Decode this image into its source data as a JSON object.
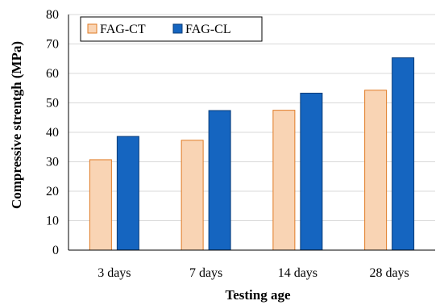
{
  "chart_data": {
    "type": "bar",
    "title": "",
    "xlabel": "Testing age",
    "ylabel": "Compressive strentgh  (MPa)",
    "categories": [
      "3 days",
      "7 days",
      "14 days",
      "28 days"
    ],
    "ylim": [
      0,
      80
    ],
    "yticks": [
      0,
      10,
      20,
      30,
      40,
      50,
      60,
      70,
      80
    ],
    "grid": true,
    "legend_position": "top-left",
    "series": [
      {
        "name": "FAG-CT",
        "values": [
          30.7,
          37.3,
          47.5,
          54.3
        ],
        "fill": "#f9d4b4",
        "stroke": "#e07b25"
      },
      {
        "name": "FAG-CL",
        "values": [
          38.6,
          47.4,
          53.3,
          65.3
        ],
        "fill": "#1565c0",
        "stroke": "#0a3d7a"
      }
    ]
  }
}
